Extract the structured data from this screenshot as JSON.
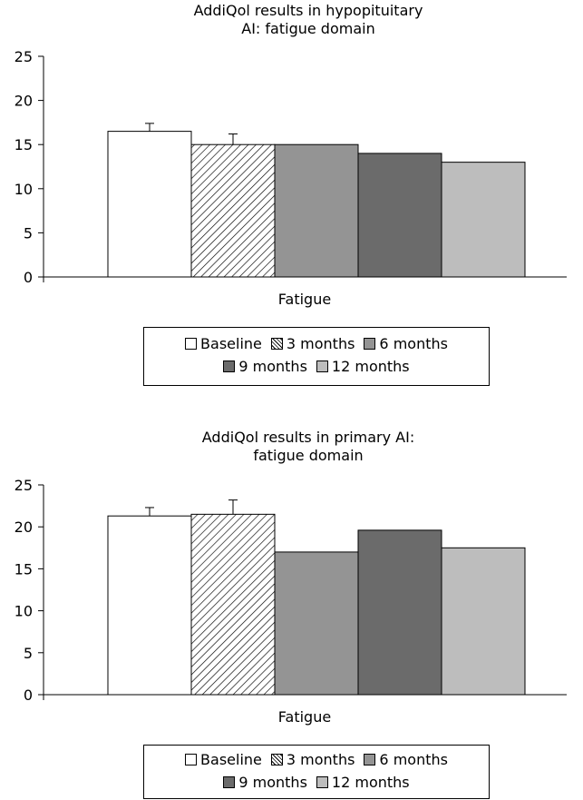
{
  "chart_data": [
    {
      "type": "bar",
      "title_lines": [
        "AddiQol results in hypopituitary",
        "AI: fatigue domain"
      ],
      "categories": [
        "Fatigue"
      ],
      "xlabel": "Fatigue",
      "ylabel": "",
      "ylim": [
        0,
        25
      ],
      "yticks": [
        "0",
        "5",
        "10",
        "15",
        "20",
        "25"
      ],
      "grid": false,
      "legend_position": "bottom",
      "series": [
        {
          "name": "Baseline",
          "values": [
            16.5
          ],
          "error": [
            0.9
          ],
          "fill": "#ffffff",
          "pattern": "none"
        },
        {
          "name": "3 months",
          "values": [
            15.0
          ],
          "error": [
            1.2
          ],
          "fill": "#ffffff",
          "pattern": "diagonal-hatch"
        },
        {
          "name": "6 months",
          "values": [
            15.0
          ],
          "error": [
            0
          ],
          "fill": "#949494",
          "pattern": "none"
        },
        {
          "name": "9 months",
          "values": [
            14.0
          ],
          "error": [
            0
          ],
          "fill": "#6b6b6b",
          "pattern": "none"
        },
        {
          "name": "12 months",
          "values": [
            13.0
          ],
          "error": [
            0
          ],
          "fill": "#bdbdbd",
          "pattern": "none"
        }
      ]
    },
    {
      "type": "bar",
      "title_lines": [
        "AddiQol results in primary AI:",
        "fatigue domain"
      ],
      "categories": [
        "Fatigue"
      ],
      "xlabel": "Fatigue",
      "ylabel": "",
      "ylim": [
        0,
        25
      ],
      "yticks": [
        "0",
        "5",
        "10",
        "15",
        "20",
        "25"
      ],
      "grid": false,
      "legend_position": "bottom",
      "series": [
        {
          "name": "Baseline",
          "values": [
            21.3
          ],
          "error": [
            1.0
          ],
          "fill": "#ffffff",
          "pattern": "none"
        },
        {
          "name": "3 months",
          "values": [
            21.5
          ],
          "error": [
            1.7
          ],
          "fill": "#ffffff",
          "pattern": "diagonal-hatch"
        },
        {
          "name": "6 months",
          "values": [
            17.0
          ],
          "error": [
            0
          ],
          "fill": "#949494",
          "pattern": "none"
        },
        {
          "name": "9 months",
          "values": [
            19.6
          ],
          "error": [
            0
          ],
          "fill": "#6b6b6b",
          "pattern": "none"
        },
        {
          "name": "12 months",
          "values": [
            17.5
          ],
          "error": [
            0
          ],
          "fill": "#bdbdbd",
          "pattern": "none"
        }
      ]
    }
  ]
}
